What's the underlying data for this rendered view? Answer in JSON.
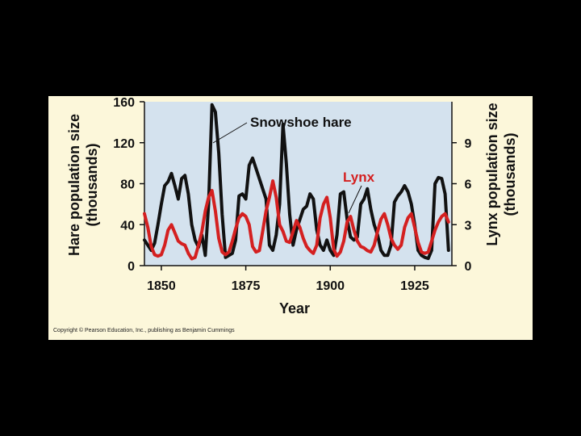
{
  "copyright": "Copyright © Pearson Education, Inc., publishing as Benjamin Cummings",
  "colors": {
    "plot_background": "#d4e2ee",
    "panel_background": "#fcf7da",
    "hare_line": "#111111",
    "lynx_line": "#d42020",
    "lynx_label": "#d42020"
  },
  "chart_data": {
    "type": "line",
    "title": "",
    "xlabel": "Year",
    "ylabel": "Hare population size (thousands)",
    "ylabel_right": "Lynx population size (thousands)",
    "xlim": [
      1845,
      1936
    ],
    "ylim": [
      0,
      160
    ],
    "ylim_right": [
      0,
      12
    ],
    "x_ticks": [
      1850,
      1875,
      1900,
      1925
    ],
    "x_tick_labels": [
      "1850",
      "1875",
      "1900",
      "1925"
    ],
    "y_ticks": [
      0,
      40,
      80,
      120,
      160
    ],
    "y_tick_labels": [
      "0",
      "40",
      "80",
      "120",
      "160"
    ],
    "y_ticks_right": [
      0,
      3,
      6,
      9
    ],
    "y_tick_labels_right": [
      "0",
      "3",
      "6",
      "9"
    ],
    "grid": false,
    "annotations": [
      "Snowshoe hare",
      "Lynx"
    ],
    "series": [
      {
        "name": "Snowshoe hare",
        "axis": "left",
        "x": [
          1845,
          1846,
          1847,
          1848,
          1849,
          1850,
          1851,
          1852,
          1853,
          1854,
          1855,
          1856,
          1857,
          1858,
          1859,
          1860,
          1861,
          1862,
          1863,
          1864,
          1865,
          1866,
          1867,
          1868,
          1869,
          1870,
          1871,
          1872,
          1873,
          1874,
          1875,
          1876,
          1877,
          1878,
          1879,
          1880,
          1881,
          1882,
          1883,
          1884,
          1885,
          1886,
          1887,
          1888,
          1889,
          1890,
          1891,
          1892,
          1893,
          1894,
          1895,
          1896,
          1897,
          1898,
          1899,
          1900,
          1901,
          1902,
          1903,
          1904,
          1905,
          1906,
          1907,
          1908,
          1909,
          1910,
          1911,
          1912,
          1913,
          1914,
          1915,
          1916,
          1917,
          1918,
          1919,
          1920,
          1921,
          1922,
          1923,
          1924,
          1925,
          1926,
          1927,
          1928,
          1929,
          1930,
          1931,
          1932,
          1933,
          1934,
          1935
        ],
        "values": [
          25,
          20,
          15,
          22,
          40,
          60,
          78,
          82,
          90,
          78,
          65,
          85,
          88,
          70,
          40,
          25,
          18,
          30,
          10,
          60,
          157,
          150,
          110,
          50,
          8,
          10,
          12,
          25,
          68,
          70,
          65,
          98,
          105,
          95,
          85,
          75,
          65,
          20,
          15,
          30,
          60,
          138,
          100,
          50,
          20,
          35,
          45,
          55,
          58,
          70,
          65,
          35,
          20,
          15,
          25,
          15,
          10,
          30,
          70,
          72,
          45,
          28,
          25,
          28,
          60,
          65,
          75,
          55,
          40,
          30,
          15,
          10,
          10,
          20,
          62,
          68,
          72,
          78,
          72,
          60,
          40,
          15,
          10,
          8,
          7,
          15,
          80,
          86,
          85,
          70,
          15
        ]
      },
      {
        "name": "Lynx",
        "axis": "right",
        "x": [
          1845,
          1846,
          1847,
          1848,
          1849,
          1850,
          1851,
          1852,
          1853,
          1854,
          1855,
          1856,
          1857,
          1858,
          1859,
          1860,
          1861,
          1862,
          1863,
          1864,
          1865,
          1866,
          1867,
          1868,
          1869,
          1870,
          1871,
          1872,
          1873,
          1874,
          1875,
          1876,
          1877,
          1878,
          1879,
          1880,
          1881,
          1882,
          1883,
          1884,
          1885,
          1886,
          1887,
          1888,
          1889,
          1890,
          1891,
          1892,
          1893,
          1894,
          1895,
          1896,
          1897,
          1898,
          1899,
          1900,
          1901,
          1902,
          1903,
          1904,
          1905,
          1906,
          1907,
          1908,
          1909,
          1910,
          1911,
          1912,
          1913,
          1914,
          1915,
          1916,
          1917,
          1918,
          1919,
          1920,
          1921,
          1922,
          1923,
          1924,
          1925,
          1926,
          1927,
          1928,
          1929,
          1930,
          1931,
          1932,
          1933,
          1934,
          1935
        ],
        "values": [
          3.8,
          2.8,
          1.4,
          0.8,
          0.7,
          0.8,
          1.5,
          2.6,
          3.0,
          2.4,
          1.8,
          1.6,
          1.5,
          0.9,
          0.5,
          0.6,
          1.5,
          2.5,
          4.0,
          5.0,
          5.5,
          4.0,
          2.0,
          1.0,
          0.8,
          1.0,
          1.8,
          2.7,
          3.5,
          3.8,
          3.6,
          3.0,
          1.4,
          1.0,
          1.1,
          2.5,
          4.0,
          5.0,
          6.2,
          5.0,
          3.0,
          2.5,
          1.8,
          1.7,
          2.5,
          3.3,
          2.8,
          2.0,
          1.4,
          1.1,
          0.9,
          1.5,
          3.5,
          4.5,
          5.0,
          3.5,
          1.2,
          0.7,
          1.0,
          1.8,
          3.2,
          3.6,
          2.6,
          1.8,
          1.4,
          1.3,
          1.1,
          1.0,
          1.5,
          2.5,
          3.4,
          3.8,
          3.0,
          2.0,
          1.5,
          1.2,
          1.5,
          2.8,
          3.5,
          3.8,
          2.8,
          1.7,
          1.0,
          0.9,
          1.0,
          1.8,
          2.6,
          3.2,
          3.6,
          3.8,
          3.2
        ]
      }
    ]
  }
}
